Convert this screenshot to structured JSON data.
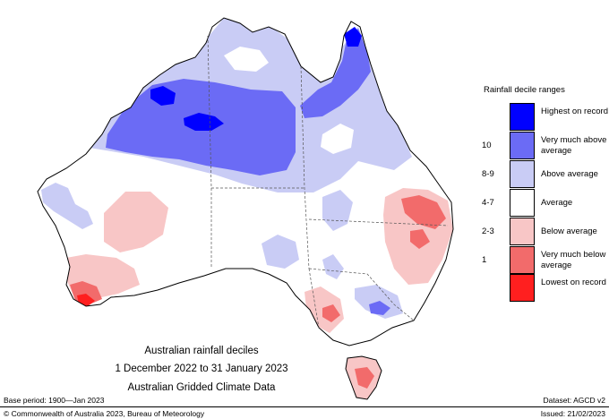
{
  "legend": {
    "title": "Rainfall decile ranges",
    "items": [
      {
        "code": "",
        "label": "Highest on record",
        "color": "#0000ff"
      },
      {
        "code": "10",
        "label": "Very much above average",
        "color": "#6b6bf5"
      },
      {
        "code": "8-9",
        "label": "Above average",
        "color": "#c9ccf5"
      },
      {
        "code": "4-7",
        "label": "Average",
        "color": "#ffffff"
      },
      {
        "code": "2-3",
        "label": "Below average",
        "color": "#f8c6c6"
      },
      {
        "code": "1",
        "label": "Very much below average",
        "color": "#f26b6b"
      },
      {
        "code": "",
        "label": "Lowest on record",
        "color": "#ff1f1f"
      }
    ]
  },
  "caption": {
    "line1": "Australian rainfall deciles",
    "line2": "1 December 2022 to 31 January 2023",
    "line3": "Australian Gridded Climate Data"
  },
  "footer": {
    "base_period": "Base period: 1900—Jan 2023",
    "dataset": "Dataset: AGCD v2",
    "copyright": "© Commonwealth of Australia 2023, Bureau of Meteorology",
    "issued": "Issued: 21/02/2023"
  }
}
